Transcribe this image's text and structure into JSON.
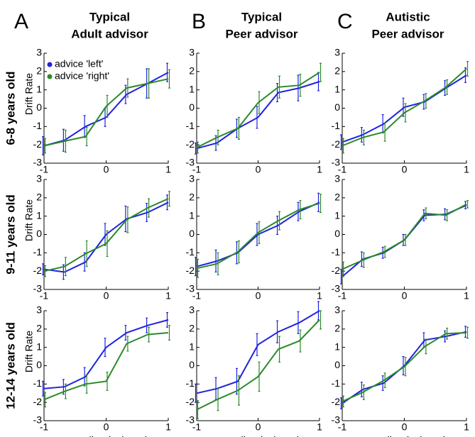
{
  "panel_letters": [
    "A",
    "B",
    "C"
  ],
  "column_titles": [
    [
      "Typical",
      "Adult advisor"
    ],
    [
      "Typical",
      "Peer advisor"
    ],
    [
      "Autistic",
      "Peer advisor"
    ]
  ],
  "row_labels": [
    "6-8 years old",
    "9-11 years old",
    "12-14 years old"
  ],
  "chart_data": [
    {
      "type": "line",
      "ylabel": "Drift Rate",
      "x": [
        -1,
        -0.67,
        -0.33,
        0,
        0.33,
        0.67,
        1
      ],
      "xlim": [
        -1,
        1
      ],
      "ylim": [
        -3,
        3
      ],
      "xticks": [
        -1,
        0,
        1
      ],
      "yticks": [
        -3,
        -2,
        -1,
        0,
        1,
        2,
        3
      ],
      "legend": "upper left",
      "series": [
        {
          "name": "advice 'left'",
          "color": "#2121e0",
          "values": [
            -2.05,
            -1.75,
            -1.0,
            -0.5,
            0.75,
            1.35,
            1.95
          ],
          "errors": [
            0.5,
            0.6,
            0.6,
            0.5,
            0.5,
            0.8,
            0.5
          ]
        },
        {
          "name": "advice 'right'",
          "color": "#2a8a2a",
          "values": [
            -2.05,
            -1.8,
            -1.55,
            0.1,
            1.1,
            1.35,
            1.6
          ],
          "errors": [
            0.4,
            0.6,
            0.5,
            0.6,
            0.5,
            0.8,
            0.5
          ]
        }
      ]
    },
    {
      "type": "line",
      "x": [
        -1,
        -0.67,
        -0.33,
        0,
        0.33,
        0.67,
        1
      ],
      "xlim": [
        -1,
        1
      ],
      "ylim": [
        -3,
        3
      ],
      "xticks": [
        -1,
        0,
        1
      ],
      "yticks": [
        -3,
        -2,
        -1,
        0,
        1,
        2,
        3
      ],
      "series": [
        {
          "color": "#2121e0",
          "values": [
            -2.2,
            -1.9,
            -1.1,
            -0.5,
            0.85,
            1.1,
            1.45
          ],
          "errors": [
            0.3,
            0.4,
            0.5,
            0.6,
            0.5,
            0.7,
            0.5
          ]
        },
        {
          "color": "#2a8a2a",
          "values": [
            -2.15,
            -1.6,
            -1.1,
            0.3,
            1.15,
            1.25,
            1.95
          ],
          "errors": [
            0.3,
            0.4,
            0.6,
            0.6,
            0.6,
            0.6,
            0.5
          ]
        }
      ]
    },
    {
      "type": "line",
      "x": [
        -1,
        -0.67,
        -0.33,
        0,
        0.33,
        0.67,
        1
      ],
      "xlim": [
        -1,
        1
      ],
      "ylim": [
        -3,
        3
      ],
      "xticks": [
        -1,
        0,
        1
      ],
      "yticks": [
        -3,
        -2,
        -1,
        0,
        1,
        2,
        3
      ],
      "series": [
        {
          "color": "#2121e0",
          "values": [
            -1.85,
            -1.45,
            -0.85,
            0.05,
            0.35,
            1.1,
            1.8
          ],
          "errors": [
            0.4,
            0.4,
            0.5,
            0.5,
            0.4,
            0.4,
            0.4
          ]
        },
        {
          "color": "#2a8a2a",
          "values": [
            -2.05,
            -1.6,
            -1.3,
            -0.25,
            0.4,
            1.15,
            2.15
          ],
          "errors": [
            0.4,
            0.4,
            0.5,
            0.5,
            0.4,
            0.4,
            0.4
          ]
        }
      ]
    },
    {
      "type": "line",
      "ylabel": "Drift Rate",
      "x": [
        -1,
        -0.67,
        -0.33,
        0,
        0.33,
        0.67,
        1
      ],
      "xlim": [
        -1,
        1
      ],
      "ylim": [
        -3,
        3
      ],
      "xticks": [
        -1,
        0,
        1
      ],
      "yticks": [
        -3,
        -2,
        -1,
        0,
        1,
        2,
        3
      ],
      "series": [
        {
          "color": "#2121e0",
          "values": [
            -1.9,
            -2.05,
            -1.5,
            0.0,
            0.85,
            1.2,
            1.75
          ],
          "errors": [
            0.3,
            0.4,
            0.5,
            0.6,
            0.7,
            0.5,
            0.4
          ]
        },
        {
          "color": "#2a8a2a",
          "values": [
            -2.0,
            -1.75,
            -1.05,
            -0.5,
            0.8,
            1.45,
            1.95
          ],
          "errors": [
            0.3,
            0.5,
            0.7,
            0.7,
            0.7,
            0.5,
            0.4
          ]
        }
      ]
    },
    {
      "type": "line",
      "x": [
        -1,
        -0.67,
        -0.33,
        0,
        0.33,
        0.67,
        1
      ],
      "xlim": [
        -1,
        1
      ],
      "ylim": [
        -3,
        3
      ],
      "xticks": [
        -1,
        0,
        1
      ],
      "yticks": [
        -3,
        -2,
        -1,
        0,
        1,
        2,
        3
      ],
      "series": [
        {
          "color": "#2121e0",
          "values": [
            -1.75,
            -1.45,
            -1.0,
            0.0,
            0.5,
            1.25,
            1.75
          ],
          "errors": [
            0.5,
            0.6,
            0.6,
            0.6,
            0.5,
            0.5,
            0.5
          ]
        },
        {
          "color": "#2a8a2a",
          "values": [
            -1.85,
            -1.6,
            -0.95,
            0.1,
            0.75,
            1.35,
            1.7
          ],
          "errors": [
            0.5,
            0.6,
            0.6,
            0.6,
            0.5,
            0.5,
            0.5
          ]
        }
      ]
    },
    {
      "type": "line",
      "x": [
        -1,
        -0.67,
        -0.33,
        0,
        0.33,
        0.67,
        1
      ],
      "xlim": [
        -1,
        1
      ],
      "ylim": [
        -3,
        3
      ],
      "xticks": [
        -1,
        0,
        1
      ],
      "yticks": [
        -3,
        -2,
        -1,
        0,
        1,
        2,
        3
      ],
      "series": [
        {
          "color": "#2121e0",
          "values": [
            -2.3,
            -1.35,
            -1.0,
            -0.3,
            1.05,
            1.1,
            1.6
          ],
          "errors": [
            0.4,
            0.4,
            0.3,
            0.3,
            0.3,
            0.3,
            0.2
          ]
        },
        {
          "color": "#2a8a2a",
          "values": [
            -1.9,
            -1.4,
            -0.95,
            -0.3,
            1.15,
            1.05,
            1.65
          ],
          "errors": [
            0.4,
            0.4,
            0.3,
            0.3,
            0.3,
            0.3,
            0.2
          ]
        }
      ]
    },
    {
      "type": "line",
      "ylabel": "Drift Rate",
      "xlabel": "Normalised Disparity",
      "x": [
        -1,
        -0.67,
        -0.33,
        0,
        0.33,
        0.67,
        1
      ],
      "xlim": [
        -1,
        1
      ],
      "ylim": [
        -3,
        3
      ],
      "xticks": [
        -1,
        0,
        1
      ],
      "yticks": [
        -3,
        -2,
        -1,
        0,
        1,
        2,
        3
      ],
      "series": [
        {
          "color": "#2121e0",
          "values": [
            -1.25,
            -1.15,
            -0.6,
            1.0,
            1.8,
            2.2,
            2.5
          ],
          "errors": [
            0.4,
            0.4,
            0.5,
            0.5,
            0.4,
            0.4,
            0.4
          ]
        },
        {
          "color": "#2a8a2a",
          "values": [
            -1.85,
            -1.4,
            -1.0,
            -0.85,
            1.2,
            1.7,
            1.8
          ],
          "errors": [
            0.4,
            0.4,
            0.5,
            0.5,
            0.4,
            0.4,
            0.4
          ]
        }
      ]
    },
    {
      "type": "line",
      "xlabel": "Normalised Disparity",
      "x": [
        -1,
        -0.67,
        -0.33,
        0,
        0.33,
        0.67,
        1
      ],
      "xlim": [
        -1,
        1
      ],
      "ylim": [
        -3,
        3
      ],
      "xticks": [
        -1,
        0,
        1
      ],
      "yticks": [
        -3,
        -2,
        -1,
        0,
        1,
        2,
        3
      ],
      "series": [
        {
          "color": "#2121e0",
          "values": [
            -1.5,
            -1.25,
            -0.85,
            1.15,
            1.85,
            2.35,
            3.0
          ],
          "errors": [
            0.5,
            0.6,
            0.7,
            0.6,
            0.6,
            0.6,
            0.5
          ]
        },
        {
          "color": "#2a8a2a",
          "values": [
            -2.4,
            -1.85,
            -1.35,
            -0.6,
            0.9,
            1.35,
            2.5
          ],
          "errors": [
            0.5,
            0.6,
            0.8,
            0.8,
            0.7,
            0.6,
            0.5
          ]
        }
      ]
    },
    {
      "type": "line",
      "xlabel": "Normalised Disparity",
      "x": [
        -1,
        -0.67,
        -0.33,
        0,
        0.33,
        0.67,
        1
      ],
      "xlim": [
        -1,
        1
      ],
      "ylim": [
        -3,
        3
      ],
      "xticks": [
        -1,
        0,
        1
      ],
      "yticks": [
        -3,
        -2,
        -1,
        0,
        1,
        2,
        3
      ],
      "series": [
        {
          "color": "#2121e0",
          "values": [
            -2.05,
            -1.3,
            -0.95,
            0.0,
            1.4,
            1.6,
            1.85
          ],
          "errors": [
            0.3,
            0.4,
            0.4,
            0.5,
            0.4,
            0.3,
            0.3
          ]
        },
        {
          "color": "#2a8a2a",
          "values": [
            -1.95,
            -1.45,
            -0.8,
            -0.05,
            1.05,
            1.75,
            1.8
          ],
          "errors": [
            0.3,
            0.4,
            0.4,
            0.5,
            0.4,
            0.3,
            0.3
          ]
        }
      ]
    }
  ]
}
